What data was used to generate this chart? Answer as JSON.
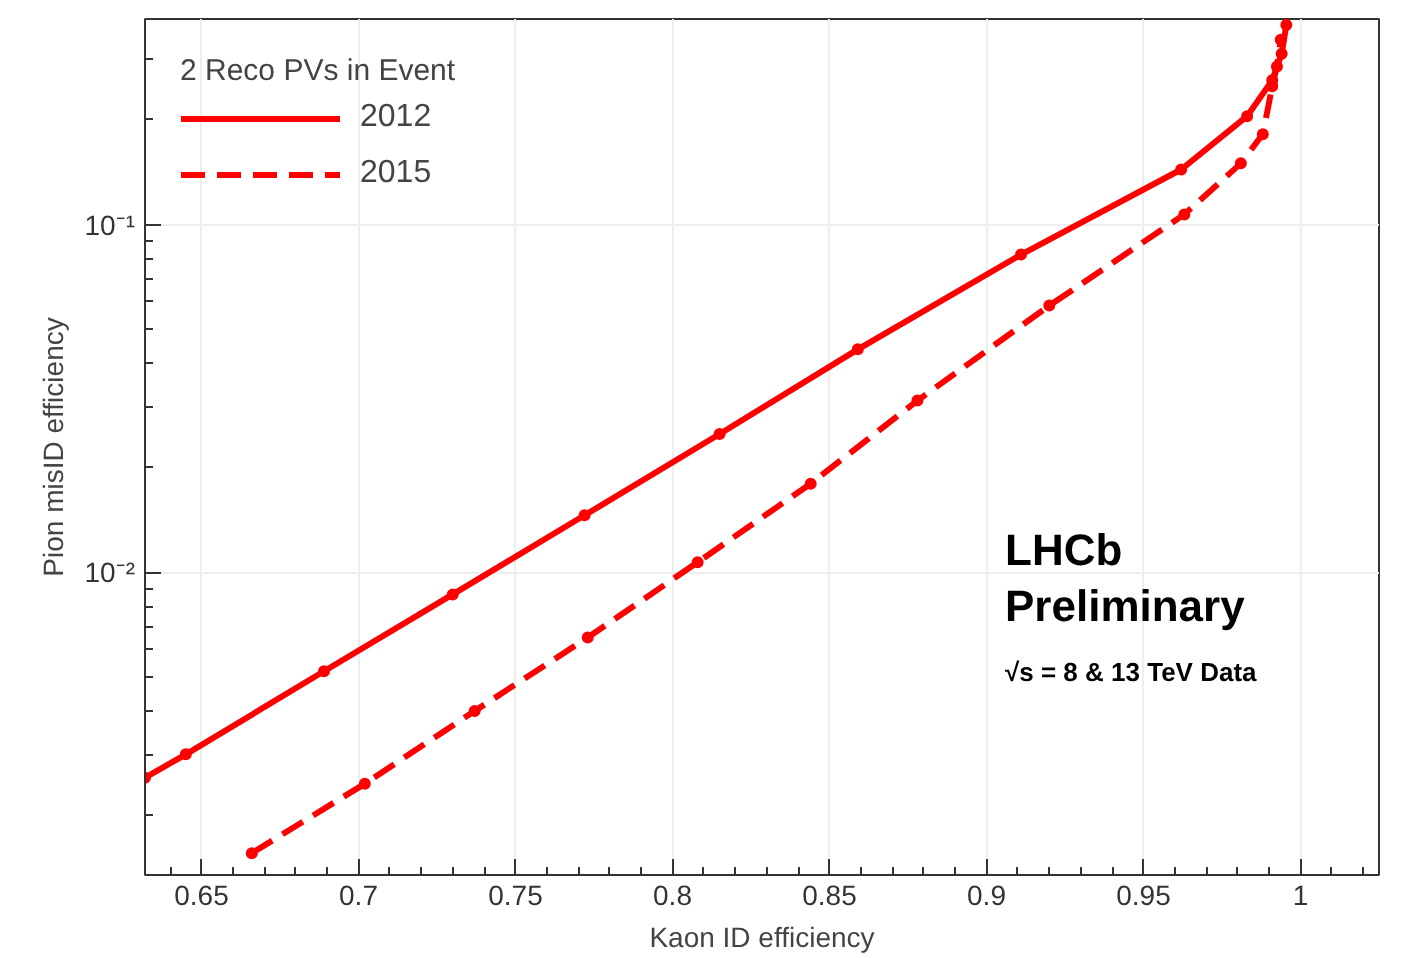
{
  "chart_data": {
    "type": "line",
    "xlabel": "Kaon ID efficiency",
    "ylabel": "Pion misID efficiency",
    "legend_title": "2 Reco PVs in Event",
    "annotations": [
      "LHCb",
      "Preliminary",
      "√s = 8 & 13 TeV Data"
    ],
    "series": [
      {
        "name": "2012",
        "color": "#ff0000",
        "line_style": "solid",
        "x": [
          0.632,
          0.645,
          0.689,
          0.73,
          0.772,
          0.815,
          0.859,
          0.911,
          0.962,
          0.983,
          0.991,
          0.994,
          0.9955
        ],
        "values": [
          0.00257,
          0.003,
          0.0052,
          0.00865,
          0.0146,
          0.025,
          0.0438,
          0.082,
          0.144,
          0.205,
          0.26,
          0.31,
          0.375
        ]
      },
      {
        "name": "2015",
        "color": "#ff0000",
        "line_style": "dashed",
        "x": [
          0.666,
          0.702,
          0.737,
          0.773,
          0.808,
          0.844,
          0.878,
          0.92,
          0.963,
          0.981,
          0.988,
          0.991,
          0.9925,
          0.9937
        ],
        "values": [
          0.00156,
          0.00247,
          0.004,
          0.0065,
          0.0107,
          0.018,
          0.0312,
          0.0585,
          0.107,
          0.15,
          0.182,
          0.25,
          0.285,
          0.34
        ]
      }
    ],
    "xlim": [
      0.632,
      1.025
    ],
    "ylim": [
      0.00135,
      0.39
    ],
    "xticks": [
      {
        "value": 0.65,
        "label": "0.65"
      },
      {
        "value": 0.7,
        "label": "0.7"
      },
      {
        "value": 0.75,
        "label": "0.75"
      },
      {
        "value": 0.8,
        "label": "0.8"
      },
      {
        "value": 0.85,
        "label": "0.85"
      },
      {
        "value": 0.9,
        "label": "0.9"
      },
      {
        "value": 0.95,
        "label": "0.95"
      },
      {
        "value": 1,
        "label": "1"
      }
    ],
    "yticks": [
      {
        "value": 0.01,
        "label": "10⁻²"
      },
      {
        "value": 0.1,
        "label": "10⁻¹"
      }
    ],
    "log": "y",
    "grid": true,
    "legend": "top left",
    "marker": "circle"
  }
}
